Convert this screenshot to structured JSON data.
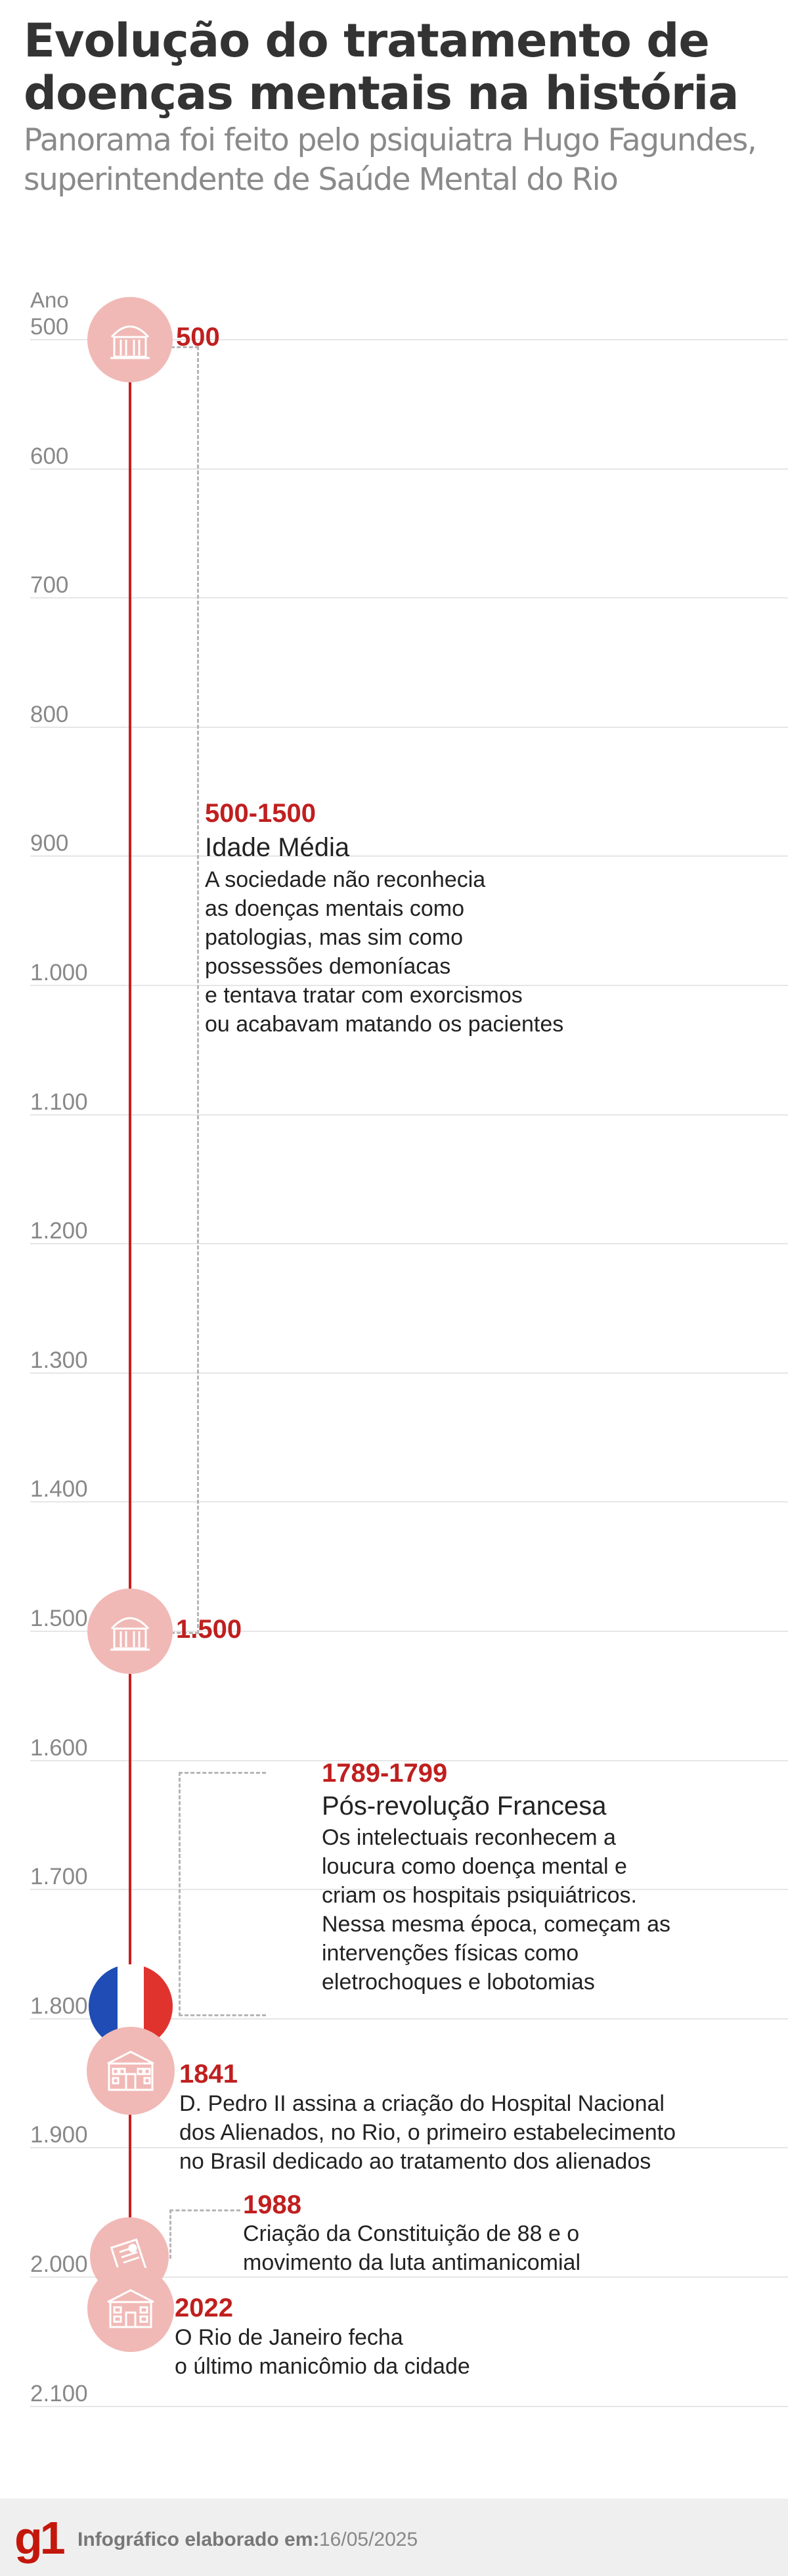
{
  "header": {
    "title_line1": "Evolução do tratamento de",
    "title_line2": "doenças mentais na história",
    "subtitle_line1": "Panorama foi feito pelo psiquiatra Hugo Fagundes,",
    "subtitle_line2": "superintendente de Saúde Mental do Rio"
  },
  "axis": {
    "label": "Ano",
    "ticks": [
      "500",
      "600",
      "700",
      "800",
      "900",
      "1.000",
      "1.100",
      "1.200",
      "1.300",
      "1.400",
      "1.500",
      "1.600",
      "1.700",
      "1.800",
      "1.900",
      "2.000",
      "2.100"
    ]
  },
  "colors": {
    "accent": "#c01f1f",
    "icon_bg": "#f0b9b6",
    "grid": "#e6e6e6"
  },
  "events": {
    "e500": {
      "year": "500",
      "icon": "building-icon"
    },
    "e1500": {
      "year": "1.500",
      "icon": "building-icon"
    },
    "idade_media": {
      "years": "500-1500",
      "title": "Idade Média",
      "lines": [
        "A sociedade não reconhecia",
        "as doenças mentais como",
        "patologias, mas sim como",
        "possessões demoníacas",
        "e tentava tratar com exorcismos",
        "ou acabavam matando os pacientes"
      ]
    },
    "revolucao": {
      "years": "1789-1799",
      "title": "Pós-revolução Francesa",
      "lines": [
        "Os intelectuais reconhecem a",
        "loucura como doença mental e",
        "criam os hospitais psiquiátricos.",
        "Nessa mesma época, começam as",
        "intervenções físicas como",
        "eletrochoques e lobotomias"
      ],
      "icon": "france-flag-icon"
    },
    "e1841": {
      "year": "1841",
      "lines": [
        "D. Pedro II assina a criação do Hospital Nacional",
        "dos Alienados, no Rio, o primeiro estabelecimento",
        "no Brasil dedicado ao tratamento dos alienados"
      ],
      "icon": "hospital-icon"
    },
    "e1988": {
      "year": "1988",
      "lines": [
        "Criação da Constituição de 88 e o",
        "movimento da luta antimanicomial"
      ],
      "icon": "constitution-icon"
    },
    "e2022": {
      "year": "2022",
      "lines": [
        "O Rio de Janeiro fecha",
        "o último manicômio da cidade"
      ],
      "icon": "asylum-building-icon"
    }
  },
  "footer": {
    "logo": "g1",
    "credit_label": "Infográfico elaborado em:",
    "credit_date": "16/05/2025"
  }
}
